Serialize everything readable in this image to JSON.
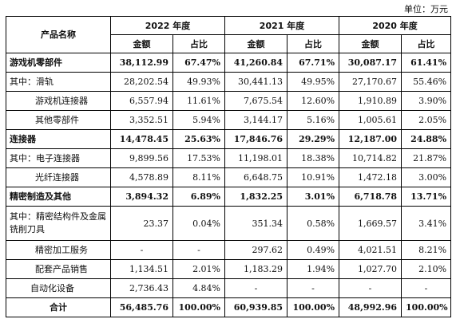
{
  "unit_label": "单位：万元",
  "header": {
    "product_col": "产品名称",
    "years": [
      "2022 年度",
      "2021 年度",
      "2020 年度"
    ],
    "amount": "金额",
    "ratio": "占比"
  },
  "rows": [
    {
      "label": "游戏机零部件",
      "v": [
        "38,112.99",
        "67.47%",
        "41,260.84",
        "67.71%",
        "30,087.17",
        "61.41%"
      ]
    },
    {
      "label": "其中：滑轨",
      "v": [
        "28,202.54",
        "49.93%",
        "30,441.13",
        "49.95%",
        "27,170.67",
        "55.46%"
      ]
    },
    {
      "label": "游戏机连接器",
      "v": [
        "6,557.94",
        "11.61%",
        "7,675.54",
        "12.60%",
        "1,910.89",
        "3.90%"
      ]
    },
    {
      "label": "其他零部件",
      "v": [
        "3,352.51",
        "5.94%",
        "3,144.17",
        "5.16%",
        "1,005.61",
        "2.05%"
      ]
    },
    {
      "label": "连接器",
      "v": [
        "14,478.45",
        "25.63%",
        "17,846.76",
        "29.29%",
        "12,187.00",
        "24.88%"
      ]
    },
    {
      "label": "其中：电子连接器",
      "v": [
        "9,899.56",
        "17.53%",
        "11,198.01",
        "18.38%",
        "10,714.82",
        "21.87%"
      ]
    },
    {
      "label": "光纤连接器",
      "v": [
        "4,578.89",
        "8.11%",
        "6,648.75",
        "10.91%",
        "1,472.18",
        "3.00%"
      ]
    },
    {
      "label": "精密制造及其他",
      "v": [
        "3,894.32",
        "6.89%",
        "1,832.25",
        "3.01%",
        "6,718.78",
        "13.71%"
      ]
    },
    {
      "label": "其中：精密结构件及金属铣削刀具",
      "v": [
        "23.37",
        "0.04%",
        "351.34",
        "0.58%",
        "1,669.57",
        "3.41%"
      ]
    },
    {
      "label": "精密加工服务",
      "v": [
        "-",
        "-",
        "297.62",
        "0.49%",
        "4,021.51",
        "8.21%"
      ]
    },
    {
      "label": "配套产品销售",
      "v": [
        "1,134.51",
        "2.01%",
        "1,183.29",
        "1.94%",
        "1,027.70",
        "2.10%"
      ]
    },
    {
      "label": "自动化设备",
      "v": [
        "2,736.43",
        "4.84%",
        "-",
        "-",
        "-",
        "-"
      ]
    },
    {
      "label": "合计",
      "v": [
        "56,485.76",
        "100.00%",
        "60,939.85",
        "100.00%",
        "48,992.96",
        "100.00%"
      ]
    }
  ]
}
